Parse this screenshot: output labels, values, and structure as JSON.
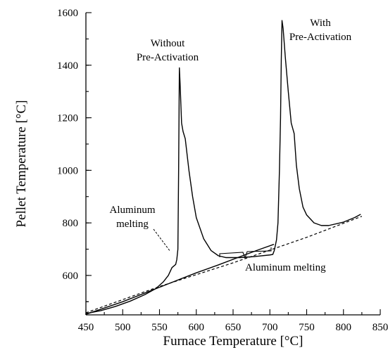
{
  "chart_data": {
    "type": "line",
    "xlabel": "Furnace Temperature [°C]",
    "ylabel": "Pellet Temperature [°C]",
    "xlim": [
      450,
      850
    ],
    "ylim": [
      450,
      1600
    ],
    "xticks": [
      450,
      500,
      550,
      600,
      650,
      700,
      750,
      800,
      850
    ],
    "yticks": [
      600,
      800,
      1000,
      1200,
      1400,
      1600
    ],
    "grid": false,
    "series": [
      {
        "style": "solid",
        "points": [
          [
            450,
            455
          ],
          [
            470,
            466
          ],
          [
            490,
            482
          ],
          [
            510,
            502
          ],
          [
            530,
            527
          ],
          [
            545,
            550
          ],
          [
            555,
            575
          ],
          [
            562,
            600
          ],
          [
            567,
            630
          ],
          [
            570,
            637
          ],
          [
            572,
            642
          ],
          [
            573.5,
            660
          ],
          [
            575,
            700
          ],
          [
            576,
            1000
          ],
          [
            577,
            1390
          ],
          [
            578,
            1330
          ],
          [
            580,
            1180
          ],
          [
            582,
            1148
          ],
          [
            585,
            1120
          ],
          [
            590,
            1000
          ],
          [
            595,
            900
          ],
          [
            600,
            820
          ],
          [
            610,
            740
          ],
          [
            620,
            695
          ],
          [
            630,
            675
          ],
          [
            640,
            668
          ],
          [
            660,
            668
          ],
          [
            680,
            672
          ],
          [
            700,
            678
          ],
          [
            704,
            680
          ],
          [
            706,
            695
          ],
          [
            709,
            735
          ],
          [
            711,
            800
          ],
          [
            713,
            1000
          ],
          [
            714.5,
            1200
          ],
          [
            715.5,
            1420
          ],
          [
            716.5,
            1570
          ],
          [
            718,
            1540
          ],
          [
            721,
            1430
          ],
          [
            725,
            1300
          ],
          [
            729,
            1180
          ],
          [
            731,
            1160
          ],
          [
            733,
            1140
          ],
          [
            736,
            1020
          ],
          [
            740,
            930
          ],
          [
            745,
            860
          ],
          [
            750,
            830
          ],
          [
            760,
            800
          ],
          [
            770,
            790
          ],
          [
            780,
            790
          ],
          [
            800,
            803
          ],
          [
            815,
            820
          ],
          [
            823,
            832
          ]
        ]
      },
      {
        "style": "solid",
        "points": [
          [
            450,
            452
          ],
          [
            500,
            500
          ],
          [
            550,
            555
          ],
          [
            600,
            610
          ],
          [
            630,
            640
          ],
          [
            660,
            672
          ],
          [
            685,
            698
          ],
          [
            705,
            718
          ]
        ]
      },
      {
        "style": "dashed",
        "points": [
          [
            450,
            458
          ],
          [
            550,
            558
          ],
          [
            650,
            648
          ],
          [
            750,
            745
          ],
          [
            825,
            825
          ]
        ]
      }
    ],
    "annotations": [
      {
        "lines": [
          "Without",
          "Pre-Activation"
        ]
      },
      {
        "lines": [
          "With",
          "Pre-Activation"
        ]
      },
      {
        "lines": [
          "Aluminum",
          "melting"
        ]
      },
      {
        "lines": [
          "Aluminum melting"
        ]
      }
    ]
  }
}
